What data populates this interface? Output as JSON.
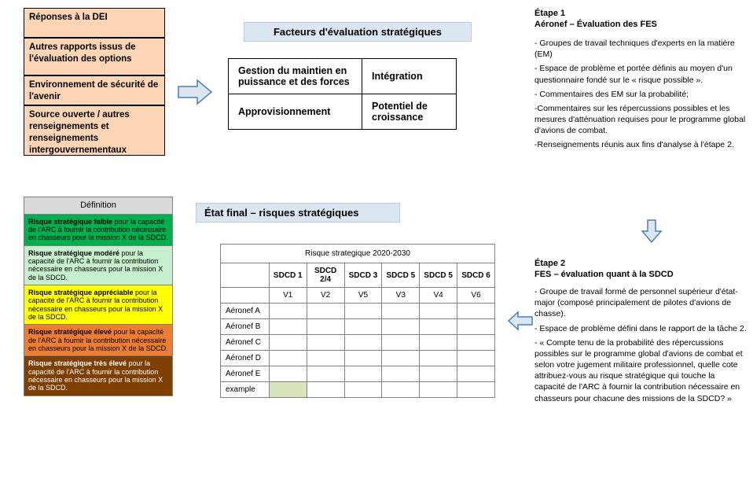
{
  "inputs": {
    "box1": "Réponses à la DEI",
    "box2": "Autres rapports issus de l'évaluation des options",
    "box3": "Environnement de sécurité de l'avenir",
    "box4": "Source ouverte / autres renseignements et renseignements intergouvernementaux"
  },
  "factors": {
    "header": "Facteurs d'évaluation stratégiques",
    "c11": "Gestion du maintien en puissance et des forces",
    "c12": "Intégration",
    "c21": "Approvisionnement",
    "c22": "Potentiel de croissance"
  },
  "definitions": {
    "header": "Définition",
    "levels": [
      {
        "color": "#00b050",
        "text": "Risque stratégique faible pour la capacité de l'ARC à fournir la contribution nécessaire en chasseurs pour la mission X de la SDCD.",
        "fg": "#000"
      },
      {
        "color": "#c6efce",
        "text": "Risque stratégique modéré pour la capacité de l'ARC à fournir la contribution nécessaire en chasseurs pour la mission X de la SDCD.",
        "fg": "#000"
      },
      {
        "color": "#ffff00",
        "text": "Risque stratégique appréciable pour la capacité de l'ARC à fournir la contribution nécessaire en chasseurs pour la mission X de la SDCD.",
        "fg": "#000"
      },
      {
        "color": "#ed7d31",
        "text": "Risque stratégique élevé pour la capacité de l'ARC à fournir la contribution nécessaire en chasseurs pour la mission X de la SDCD.",
        "fg": "#000"
      },
      {
        "color": "#7f3f00",
        "text": "Risque stratégique très élevé pour la capacité de l'ARC à fournir la contribution nécessaire en chasseurs pour la mission X de la SDCD.",
        "fg": "#fff"
      }
    ]
  },
  "final": {
    "header": "État final – risques stratégiques",
    "table_title": "Risque strategique 2020-2030",
    "cols": [
      "SDCD 1",
      "SDCD 2/4",
      "SDCD 3",
      "SDCD 5",
      "SDCD 5",
      "SDCD 6"
    ],
    "vrow": [
      "V1",
      "V2",
      "V5",
      "V3",
      "V4",
      "V6"
    ],
    "rows": [
      "Aéronef A",
      "Aéronef B",
      "Aéronef C",
      "Aéronef D",
      "Aéronef E",
      "example"
    ],
    "example_cell_color": "#d8e4bc"
  },
  "steps": {
    "s1_title1": "Étape 1",
    "s1_title2": "Aéronef – Évaluation des FES",
    "s1_items": [
      "- Groupes de travail techniques d'experts en la matière (EM)",
      "- Espace de problème et portée définis au moyen d'un questionnaire fondé sur le « risque possible ».",
      "- Commentaires des EM sur la probabilité;",
      "-Commentaires sur les répercussions possibles et les mesures d'atténuation requises pour le programme global d'avions de combat.",
      "-Renseignements réunis aux fins d'analyse à l'étape 2."
    ],
    "s2_title1": "Étape 2",
    "s2_title2": "FES – évaluation quant à la SDCD",
    "s2_items": [
      "- Groupe de travail formé de personnel supérieur d'état-major (composé principalement de pilotes d'avions de chasse).",
      "- Espace de problème défini dans le rapport de la tâche 2.",
      "- « Compte tenu de la probabilité des répercussions possibles sur le programme global d'avions de combat et selon votre jugement militaire professionnel, quelle cote attribuez-vous au risque stratégique qui touche la capacité de l'ARC à fournir la contribution nécessaire en chasseurs pour chacune des missions de la SDCD? »"
    ]
  },
  "colors": {
    "peach": "#fcd5b4",
    "blueHeader": "#dce6f1",
    "arrowFill": "#dce6f1",
    "arrowStroke": "#4a7ebb"
  }
}
